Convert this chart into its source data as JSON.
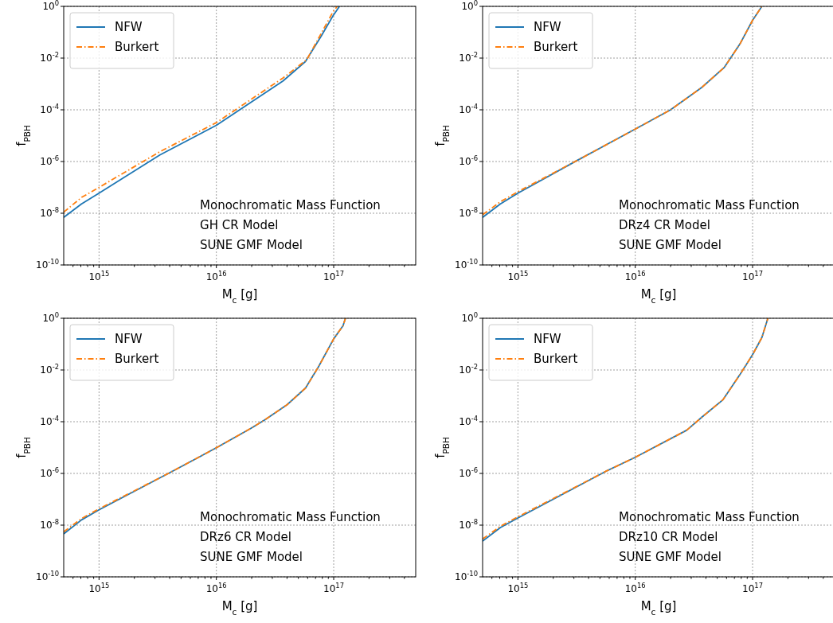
{
  "chart_data": [
    {
      "type": "line",
      "xlabel": "M$_{c}$ [g]",
      "ylabel": "f$_{PBH}$",
      "log": "xy",
      "grid": true,
      "legend": "top left",
      "xlim": [
        500000000000000.0,
        5e+17
      ],
      "ylim": [
        1e-10,
        1
      ],
      "xticks": [
        {
          "value": 600000000000000.0,
          "label": null
        },
        {
          "value": 700000000000000.0,
          "label": null
        },
        {
          "value": 800000000000000.0,
          "label": null
        },
        {
          "value": 900000000000000.0,
          "label": null
        },
        {
          "value": 1000000000000000.0,
          "label": "10$^{15}$"
        },
        {
          "value": 2000000000000000.0,
          "label": null
        },
        {
          "value": 3000000000000000.0,
          "label": null
        },
        {
          "value": 4000000000000000.0,
          "label": null
        },
        {
          "value": 5000000000000000.0,
          "label": null
        },
        {
          "value": 6000000000000000.0,
          "label": null
        },
        {
          "value": 7000000000000000.0,
          "label": null
        },
        {
          "value": 8000000000000000.0,
          "label": null
        },
        {
          "value": 9000000000000000.0,
          "label": null
        },
        {
          "value": 1e+16,
          "label": "10$^{16}$"
        },
        {
          "value": 2e+16,
          "label": null
        },
        {
          "value": 3e+16,
          "label": null
        },
        {
          "value": 4e+16,
          "label": null
        },
        {
          "value": 5e+16,
          "label": null
        },
        {
          "value": 6e+16,
          "label": null
        },
        {
          "value": 7e+16,
          "label": null
        },
        {
          "value": 8e+16,
          "label": null
        },
        {
          "value": 9e+16,
          "label": null
        },
        {
          "value": 1e+17,
          "label": "10$^{17}$"
        },
        {
          "value": 2e+17,
          "label": null
        },
        {
          "value": 3e+17,
          "label": null
        },
        {
          "value": 4e+17,
          "label": null
        }
      ],
      "yticks": [
        {
          "value": 1e-10,
          "label": "10$^{-10}$"
        },
        {
          "value": 1e-08,
          "label": "10$^{-8}$"
        },
        {
          "value": 1e-06,
          "label": "10$^{-6}$"
        },
        {
          "value": 0.0001,
          "label": "10$^{-4}$"
        },
        {
          "value": 0.01,
          "label": "10$^{-2}$"
        },
        {
          "value": 1,
          "label": "10$^{0}$"
        }
      ],
      "annotations": [
        "Monochromatic Mass Function",
        "GH CR Model",
        "SUNE GMF Model"
      ],
      "series": [
        {
          "name": "NFW",
          "color": "#1f77b4",
          "line_style": "solid",
          "x": [
            500000000000000.0,
            710000000000000.0,
            1000000000000000.0,
            3300000000000000.0,
            1e+16,
            3.7e+16,
            5.75e+16,
            7.8e+16,
            9.8e+16,
            1.12e+17
          ],
          "values": [
            6.9e-09,
            2.3e-08,
            6e-08,
            1.8e-06,
            2.5e-05,
            0.0013,
            0.0074,
            0.069,
            0.41,
            1
          ]
        },
        {
          "name": "Burkert",
          "color": "#ff7f0e",
          "line_style": "dashdot",
          "x": [
            500000000000000.0,
            710000000000000.0,
            1000000000000000.0,
            3300000000000000.0,
            1e+16,
            3.7e+16,
            5.9e+16,
            9.8e+16,
            1.07e+17
          ],
          "values": [
            1.1e-08,
            4.1e-08,
            1e-07,
            2.4e-06,
            3.2e-05,
            0.0017,
            0.0087,
            0.58,
            1
          ]
        }
      ]
    },
    {
      "type": "line",
      "xlabel": "M$_{c}$ [g]",
      "ylabel": "f$_{PBH}$",
      "log": "xy",
      "grid": true,
      "legend": "top left",
      "xlim": [
        500000000000000.0,
        5e+17
      ],
      "ylim": [
        1e-10,
        1
      ],
      "xticks": [
        {
          "value": 600000000000000.0,
          "label": null
        },
        {
          "value": 700000000000000.0,
          "label": null
        },
        {
          "value": 800000000000000.0,
          "label": null
        },
        {
          "value": 900000000000000.0,
          "label": null
        },
        {
          "value": 1000000000000000.0,
          "label": "10$^{15}$"
        },
        {
          "value": 2000000000000000.0,
          "label": null
        },
        {
          "value": 3000000000000000.0,
          "label": null
        },
        {
          "value": 4000000000000000.0,
          "label": null
        },
        {
          "value": 5000000000000000.0,
          "label": null
        },
        {
          "value": 6000000000000000.0,
          "label": null
        },
        {
          "value": 7000000000000000.0,
          "label": null
        },
        {
          "value": 8000000000000000.0,
          "label": null
        },
        {
          "value": 9000000000000000.0,
          "label": null
        },
        {
          "value": 1e+16,
          "label": "10$^{16}$"
        },
        {
          "value": 2e+16,
          "label": null
        },
        {
          "value": 3e+16,
          "label": null
        },
        {
          "value": 4e+16,
          "label": null
        },
        {
          "value": 5e+16,
          "label": null
        },
        {
          "value": 6e+16,
          "label": null
        },
        {
          "value": 7e+16,
          "label": null
        },
        {
          "value": 8e+16,
          "label": null
        },
        {
          "value": 9e+16,
          "label": null
        },
        {
          "value": 1e+17,
          "label": "10$^{17}$"
        },
        {
          "value": 2e+17,
          "label": null
        },
        {
          "value": 3e+17,
          "label": null
        },
        {
          "value": 4e+17,
          "label": null
        }
      ],
      "yticks": [
        {
          "value": 1e-10,
          "label": "10$^{-10}$"
        },
        {
          "value": 1e-08,
          "label": "10$^{-8}$"
        },
        {
          "value": 1e-06,
          "label": "10$^{-6}$"
        },
        {
          "value": 0.0001,
          "label": "10$^{-4}$"
        },
        {
          "value": 0.01,
          "label": "10$^{-2}$"
        },
        {
          "value": 1,
          "label": "10$^{0}$"
        }
      ],
      "annotations": [
        "Monochromatic Mass Function",
        "DRz4 CR Model",
        "SUNE GMF Model"
      ],
      "series": [
        {
          "name": "NFW",
          "color": "#1f77b4",
          "line_style": "solid",
          "x": [
            500000000000000.0,
            710000000000000.0,
            1000000000000000.0,
            3200000000000000.0,
            1e+16,
            2e+16,
            3.7e+16,
            5.75e+16,
            7.8e+16,
            1e+17,
            1.2e+17
          ],
          "values": [
            6.9e-09,
            2.3e-08,
            6e-08,
            1.1e-06,
            1.8e-05,
            0.0001,
            0.00074,
            0.0044,
            0.035,
            0.29,
            1
          ]
        },
        {
          "name": "Burkert",
          "color": "#ff7f0e",
          "line_style": "dashdot",
          "x": [
            500000000000000.0,
            710000000000000.0,
            1000000000000000.0,
            3200000000000000.0,
            1e+16,
            2e+16,
            3.7e+16,
            5.75e+16,
            7.8e+16,
            1e+17,
            1.2e+17
          ],
          "values": [
            8.7e-09,
            2.8e-08,
            6.8e-08,
            1.1e-06,
            1.8e-05,
            0.0001,
            0.00074,
            0.0044,
            0.035,
            0.29,
            1
          ]
        }
      ]
    },
    {
      "type": "line",
      "xlabel": "M$_{c}$ [g]",
      "ylabel": "f$_{PBH}$",
      "log": "xy",
      "grid": true,
      "legend": "top left",
      "xlim": [
        500000000000000.0,
        5e+17
      ],
      "ylim": [
        1e-10,
        1
      ],
      "xticks": [
        {
          "value": 600000000000000.0,
          "label": null
        },
        {
          "value": 700000000000000.0,
          "label": null
        },
        {
          "value": 800000000000000.0,
          "label": null
        },
        {
          "value": 900000000000000.0,
          "label": null
        },
        {
          "value": 1000000000000000.0,
          "label": "10$^{15}$"
        },
        {
          "value": 2000000000000000.0,
          "label": null
        },
        {
          "value": 3000000000000000.0,
          "label": null
        },
        {
          "value": 4000000000000000.0,
          "label": null
        },
        {
          "value": 5000000000000000.0,
          "label": null
        },
        {
          "value": 6000000000000000.0,
          "label": null
        },
        {
          "value": 7000000000000000.0,
          "label": null
        },
        {
          "value": 8000000000000000.0,
          "label": null
        },
        {
          "value": 9000000000000000.0,
          "label": null
        },
        {
          "value": 1e+16,
          "label": "10$^{16}$"
        },
        {
          "value": 2e+16,
          "label": null
        },
        {
          "value": 3e+16,
          "label": null
        },
        {
          "value": 4e+16,
          "label": null
        },
        {
          "value": 5e+16,
          "label": null
        },
        {
          "value": 6e+16,
          "label": null
        },
        {
          "value": 7e+16,
          "label": null
        },
        {
          "value": 8e+16,
          "label": null
        },
        {
          "value": 9e+16,
          "label": null
        },
        {
          "value": 1e+17,
          "label": "10$^{17}$"
        },
        {
          "value": 2e+17,
          "label": null
        },
        {
          "value": 3e+17,
          "label": null
        },
        {
          "value": 4e+17,
          "label": null
        }
      ],
      "yticks": [
        {
          "value": 1e-10,
          "label": "10$^{-10}$"
        },
        {
          "value": 1e-08,
          "label": "10$^{-8}$"
        },
        {
          "value": 1e-06,
          "label": "10$^{-6}$"
        },
        {
          "value": 0.0001,
          "label": "10$^{-4}$"
        },
        {
          "value": 0.01,
          "label": "10$^{-2}$"
        },
        {
          "value": 1,
          "label": "10$^{0}$"
        }
      ],
      "annotations": [
        "Monochromatic Mass Function",
        "DRz6 CR Model",
        "SUNE GMF Model"
      ],
      "series": [
        {
          "name": "NFW",
          "color": "#1f77b4",
          "line_style": "solid",
          "x": [
            500000000000000.0,
            710000000000000.0,
            1000000000000000.0,
            3900000000000000.0,
            1e+16,
            1.95e+16,
            2.6e+16,
            4e+16,
            5.75e+16,
            7.4e+16,
            1e+17,
            1.2e+17,
            1.26e+17
          ],
          "values": [
            4.6e-09,
            1.6e-08,
            3.9e-08,
            1e-06,
            9.8e-06,
            5.4e-05,
            0.00012,
            0.00045,
            0.002,
            0.013,
            0.16,
            0.51,
            1
          ]
        },
        {
          "name": "Burkert",
          "color": "#ff7f0e",
          "line_style": "dashdot",
          "x": [
            500000000000000.0,
            710000000000000.0,
            1000000000000000.0,
            3900000000000000.0,
            1e+16,
            1.95e+16,
            2.6e+16,
            4e+16,
            5.75e+16,
            7.4e+16,
            1e+17,
            1.2e+17,
            1.26e+17
          ],
          "values": [
            5.5e-09,
            1.8e-08,
            4.3e-08,
            1e-06,
            9.8e-06,
            5.4e-05,
            0.00012,
            0.00045,
            0.002,
            0.013,
            0.16,
            0.51,
            1
          ]
        }
      ]
    },
    {
      "type": "line",
      "xlabel": "M$_{c}$ [g]",
      "ylabel": "f$_{PBH}$",
      "log": "xy",
      "grid": true,
      "legend": "top left",
      "xlim": [
        500000000000000.0,
        5e+17
      ],
      "ylim": [
        1e-10,
        1
      ],
      "xticks": [
        {
          "value": 600000000000000.0,
          "label": null
        },
        {
          "value": 700000000000000.0,
          "label": null
        },
        {
          "value": 800000000000000.0,
          "label": null
        },
        {
          "value": 900000000000000.0,
          "label": null
        },
        {
          "value": 1000000000000000.0,
          "label": "10$^{15}$"
        },
        {
          "value": 2000000000000000.0,
          "label": null
        },
        {
          "value": 3000000000000000.0,
          "label": null
        },
        {
          "value": 4000000000000000.0,
          "label": null
        },
        {
          "value": 5000000000000000.0,
          "label": null
        },
        {
          "value": 6000000000000000.0,
          "label": null
        },
        {
          "value": 7000000000000000.0,
          "label": null
        },
        {
          "value": 8000000000000000.0,
          "label": null
        },
        {
          "value": 9000000000000000.0,
          "label": null
        },
        {
          "value": 1e+16,
          "label": "10$^{16}$"
        },
        {
          "value": 2e+16,
          "label": null
        },
        {
          "value": 3e+16,
          "label": null
        },
        {
          "value": 4e+16,
          "label": null
        },
        {
          "value": 5e+16,
          "label": null
        },
        {
          "value": 6e+16,
          "label": null
        },
        {
          "value": 7e+16,
          "label": null
        },
        {
          "value": 8e+16,
          "label": null
        },
        {
          "value": 9e+16,
          "label": null
        },
        {
          "value": 1e+17,
          "label": "10$^{17}$"
        },
        {
          "value": 2e+17,
          "label": null
        },
        {
          "value": 3e+17,
          "label": null
        },
        {
          "value": 4e+17,
          "label": null
        }
      ],
      "yticks": [
        {
          "value": 1e-10,
          "label": "10$^{-10}$"
        },
        {
          "value": 1e-08,
          "label": "10$^{-8}$"
        },
        {
          "value": 1e-06,
          "label": "10$^{-6}$"
        },
        {
          "value": 0.0001,
          "label": "10$^{-4}$"
        },
        {
          "value": 0.01,
          "label": "10$^{-2}$"
        },
        {
          "value": 1,
          "label": "10$^{0}$"
        }
      ],
      "annotations": [
        "Monochromatic Mass Function",
        "DRz10 CR Model",
        "SUNE GMF Model"
      ],
      "series": [
        {
          "name": "NFW",
          "color": "#1f77b4",
          "line_style": "solid",
          "x": [
            500000000000000.0,
            710000000000000.0,
            1000000000000000.0,
            5600000000000000.0,
            1e+16,
            2.75e+16,
            3.7e+16,
            5.6e+16,
            7.8e+16,
            1e+17,
            1.2e+17,
            1.35e+17
          ],
          "values": [
            2.4e-09,
            8.1e-09,
            1.9e-08,
            1.2e-06,
            4.2e-06,
            4.7e-05,
            0.00015,
            0.00071,
            0.0066,
            0.039,
            0.18,
            1
          ]
        },
        {
          "name": "Burkert",
          "color": "#ff7f0e",
          "line_style": "dashdot",
          "x": [
            500000000000000.0,
            710000000000000.0,
            1000000000000000.0,
            5600000000000000.0,
            1e+16,
            2.75e+16,
            3.7e+16,
            5.6e+16,
            7.8e+16,
            1e+17,
            1.2e+17,
            1.35e+17
          ],
          "values": [
            2.9e-09,
            9.1e-09,
            2.1e-08,
            1.2e-06,
            4.2e-06,
            4.7e-05,
            0.00015,
            0.00071,
            0.0066,
            0.039,
            0.18,
            1
          ]
        }
      ]
    }
  ]
}
